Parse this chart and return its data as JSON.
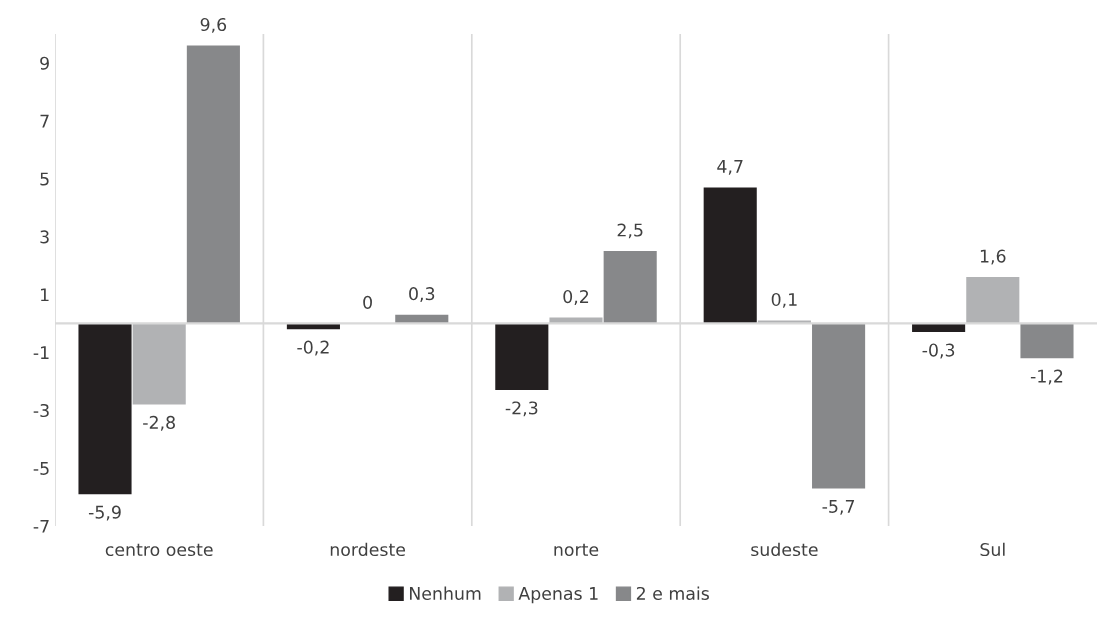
{
  "chart_data": {
    "type": "bar",
    "categories": [
      "centro oeste",
      "nordeste",
      "norte",
      "sudeste",
      "Sul"
    ],
    "series": [
      {
        "name": "Nenhum",
        "color": "#231f20",
        "values": [
          -5.9,
          -0.2,
          -2.3,
          4.7,
          -0.3
        ],
        "value_labels": [
          "-5,9",
          "-0,2",
          "-2,3",
          "4,7",
          "-0,3"
        ]
      },
      {
        "name": "Apenas 1",
        "color": "#b1b2b4",
        "values": [
          -2.8,
          0,
          0.2,
          0.1,
          1.6
        ],
        "value_labels": [
          "-2,8",
          "0",
          "0,2",
          "0,1",
          "1,6"
        ]
      },
      {
        "name": "2 e mais",
        "color": "#87888a",
        "values": [
          9.6,
          0.3,
          2.5,
          -5.7,
          -1.2
        ],
        "value_labels": [
          "9,6",
          "0,3",
          "2,5",
          "-5,7",
          "-1,2"
        ]
      }
    ],
    "ylim": [
      -7,
      10
    ],
    "yticks": [
      -7,
      -5,
      -3,
      -1,
      1,
      3,
      5,
      7,
      9
    ],
    "grid": "x",
    "legend": "bottom"
  }
}
